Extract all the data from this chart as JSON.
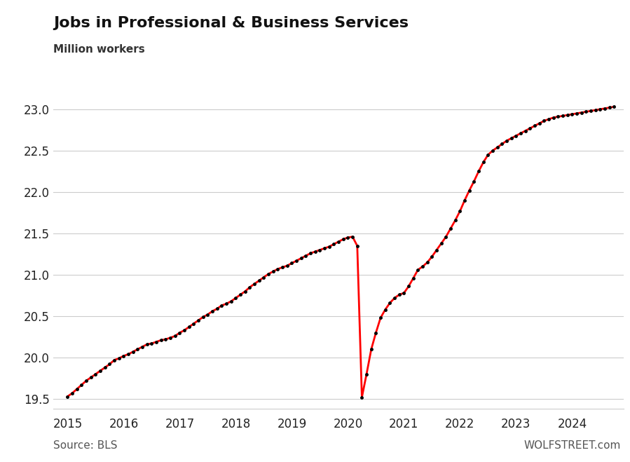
{
  "title": "Jobs in Professional & Business Services",
  "subtitle": "Million workers",
  "source_left": "Source: BLS",
  "source_right": "WOLFSTREET.com",
  "line_color": "#FF0000",
  "dot_color": "#000000",
  "background_color": "#FFFFFF",
  "grid_color": "#CCCCCC",
  "ylim": [
    19.38,
    23.12
  ],
  "yticks": [
    19.5,
    20.0,
    20.5,
    21.0,
    21.5,
    22.0,
    22.5,
    23.0
  ],
  "xticks": [
    2015,
    2016,
    2017,
    2018,
    2019,
    2020,
    2021,
    2022,
    2023,
    2024
  ],
  "xlim": [
    2014.75,
    2024.92
  ],
  "data": [
    [
      2015.0,
      19.53
    ],
    [
      2015.083,
      19.57
    ],
    [
      2015.167,
      19.62
    ],
    [
      2015.25,
      19.67
    ],
    [
      2015.333,
      19.72
    ],
    [
      2015.417,
      19.76
    ],
    [
      2015.5,
      19.8
    ],
    [
      2015.583,
      19.84
    ],
    [
      2015.667,
      19.88
    ],
    [
      2015.75,
      19.92
    ],
    [
      2015.833,
      19.97
    ],
    [
      2015.917,
      19.99
    ],
    [
      2016.0,
      20.02
    ],
    [
      2016.083,
      20.04
    ],
    [
      2016.167,
      20.07
    ],
    [
      2016.25,
      20.1
    ],
    [
      2016.333,
      20.13
    ],
    [
      2016.417,
      20.16
    ],
    [
      2016.5,
      20.17
    ],
    [
      2016.583,
      20.19
    ],
    [
      2016.667,
      20.21
    ],
    [
      2016.75,
      20.22
    ],
    [
      2016.833,
      20.24
    ],
    [
      2016.917,
      20.26
    ],
    [
      2017.0,
      20.3
    ],
    [
      2017.083,
      20.33
    ],
    [
      2017.167,
      20.37
    ],
    [
      2017.25,
      20.41
    ],
    [
      2017.333,
      20.45
    ],
    [
      2017.417,
      20.49
    ],
    [
      2017.5,
      20.52
    ],
    [
      2017.583,
      20.56
    ],
    [
      2017.667,
      20.59
    ],
    [
      2017.75,
      20.63
    ],
    [
      2017.833,
      20.65
    ],
    [
      2017.917,
      20.68
    ],
    [
      2018.0,
      20.72
    ],
    [
      2018.083,
      20.76
    ],
    [
      2018.167,
      20.8
    ],
    [
      2018.25,
      20.85
    ],
    [
      2018.333,
      20.89
    ],
    [
      2018.417,
      20.93
    ],
    [
      2018.5,
      20.97
    ],
    [
      2018.583,
      21.01
    ],
    [
      2018.667,
      21.04
    ],
    [
      2018.75,
      21.07
    ],
    [
      2018.833,
      21.09
    ],
    [
      2018.917,
      21.11
    ],
    [
      2019.0,
      21.14
    ],
    [
      2019.083,
      21.17
    ],
    [
      2019.167,
      21.2
    ],
    [
      2019.25,
      21.23
    ],
    [
      2019.333,
      21.26
    ],
    [
      2019.417,
      21.28
    ],
    [
      2019.5,
      21.3
    ],
    [
      2019.583,
      21.32
    ],
    [
      2019.667,
      21.34
    ],
    [
      2019.75,
      21.37
    ],
    [
      2019.833,
      21.4
    ],
    [
      2019.917,
      21.43
    ],
    [
      2020.0,
      21.45
    ],
    [
      2020.083,
      21.46
    ],
    [
      2020.167,
      21.35
    ],
    [
      2020.25,
      19.52
    ],
    [
      2020.333,
      19.8
    ],
    [
      2020.417,
      20.1
    ],
    [
      2020.5,
      20.3
    ],
    [
      2020.583,
      20.48
    ],
    [
      2020.667,
      20.58
    ],
    [
      2020.75,
      20.66
    ],
    [
      2020.833,
      20.72
    ],
    [
      2020.917,
      20.76
    ],
    [
      2021.0,
      20.78
    ],
    [
      2021.083,
      20.86
    ],
    [
      2021.167,
      20.96
    ],
    [
      2021.25,
      21.06
    ],
    [
      2021.333,
      21.1
    ],
    [
      2021.417,
      21.15
    ],
    [
      2021.5,
      21.22
    ],
    [
      2021.583,
      21.3
    ],
    [
      2021.667,
      21.38
    ],
    [
      2021.75,
      21.46
    ],
    [
      2021.833,
      21.56
    ],
    [
      2021.917,
      21.66
    ],
    [
      2022.0,
      21.77
    ],
    [
      2022.083,
      21.9
    ],
    [
      2022.167,
      22.02
    ],
    [
      2022.25,
      22.13
    ],
    [
      2022.333,
      22.25
    ],
    [
      2022.417,
      22.36
    ],
    [
      2022.5,
      22.45
    ],
    [
      2022.583,
      22.5
    ],
    [
      2022.667,
      22.54
    ],
    [
      2022.75,
      22.58
    ],
    [
      2022.833,
      22.62
    ],
    [
      2022.917,
      22.65
    ],
    [
      2023.0,
      22.68
    ],
    [
      2023.083,
      22.71
    ],
    [
      2023.167,
      22.74
    ],
    [
      2023.25,
      22.77
    ],
    [
      2023.333,
      22.8
    ],
    [
      2023.417,
      22.83
    ],
    [
      2023.5,
      22.86
    ],
    [
      2023.583,
      22.88
    ],
    [
      2023.667,
      22.9
    ],
    [
      2023.75,
      22.91
    ],
    [
      2023.833,
      22.92
    ],
    [
      2023.917,
      22.93
    ],
    [
      2024.0,
      22.94
    ],
    [
      2024.083,
      22.95
    ],
    [
      2024.167,
      22.96
    ],
    [
      2024.25,
      22.97
    ],
    [
      2024.333,
      22.98
    ],
    [
      2024.417,
      22.99
    ],
    [
      2024.5,
      23.0
    ],
    [
      2024.583,
      23.01
    ],
    [
      2024.667,
      23.02
    ],
    [
      2024.75,
      23.03
    ]
  ]
}
